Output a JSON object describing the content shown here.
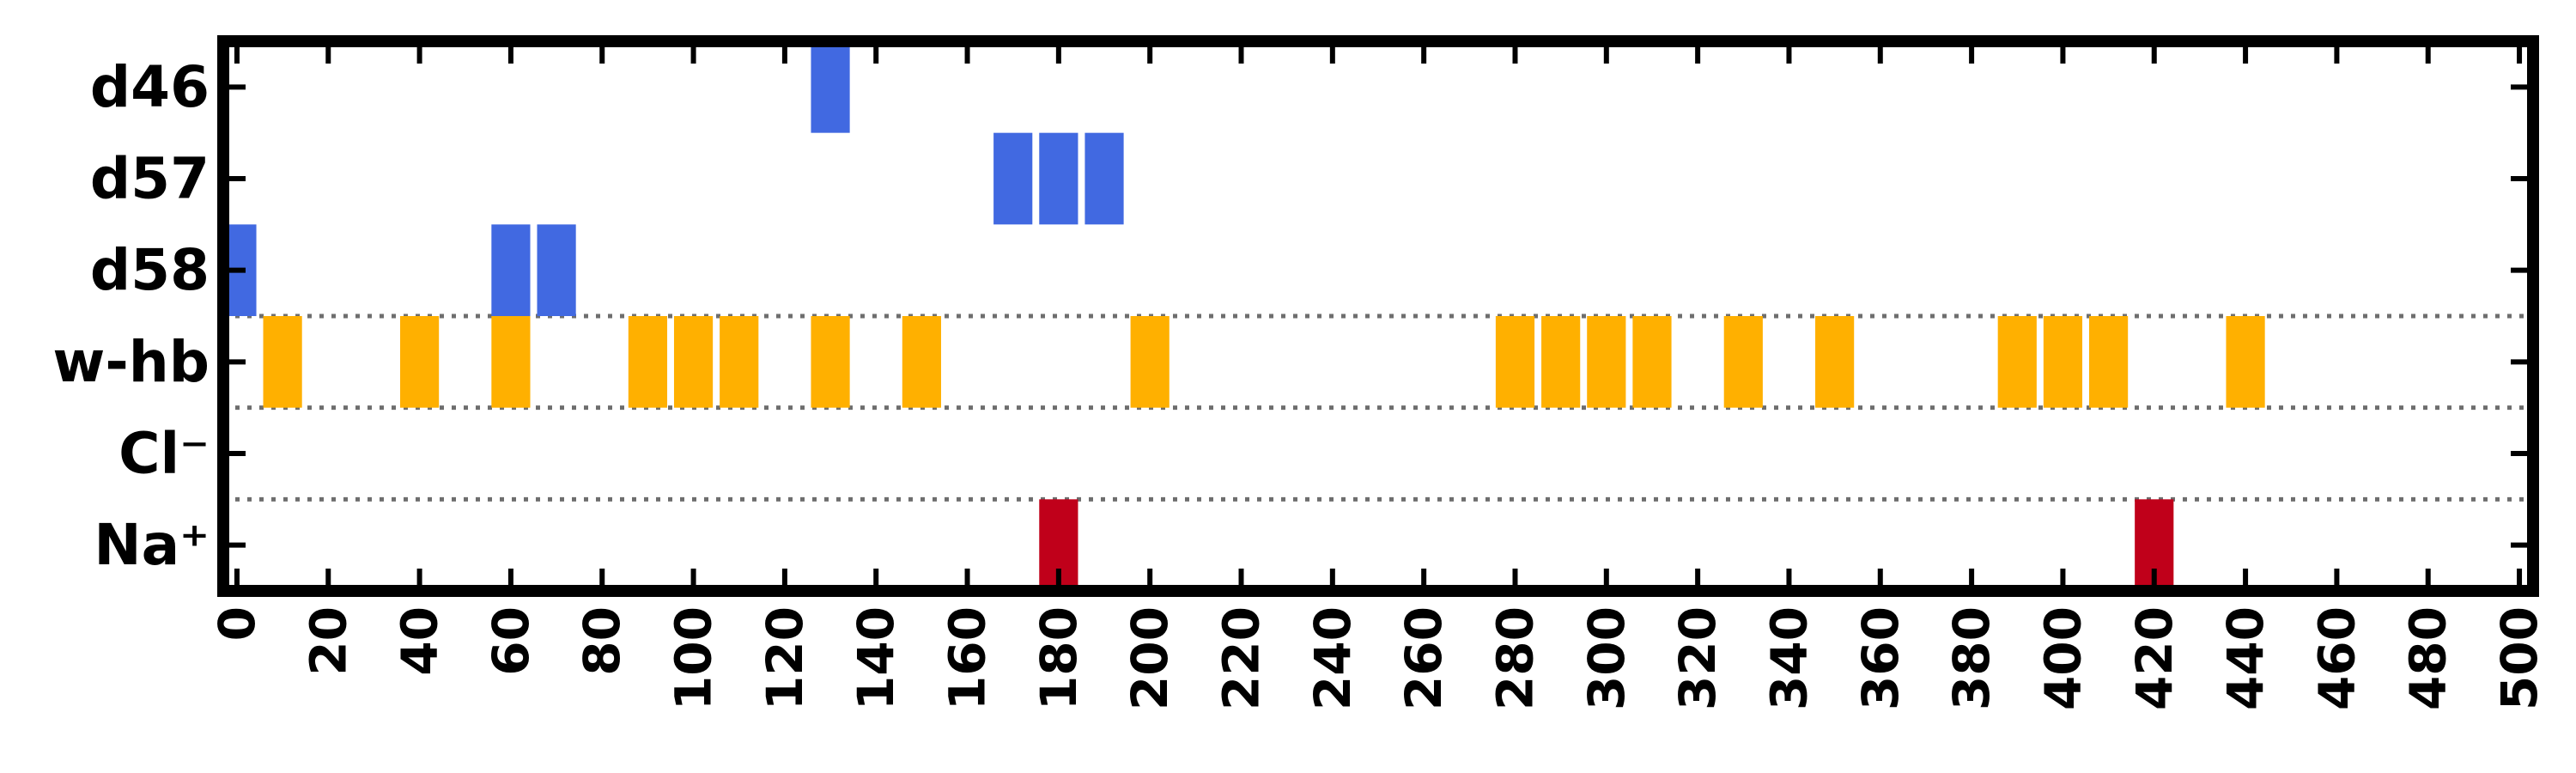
{
  "chart_data": {
    "type": "event-raster",
    "title": "",
    "xlabel": "",
    "ylabel": "",
    "xlim": [
      -3,
      503
    ],
    "x_ticks": [
      0,
      20,
      40,
      60,
      80,
      100,
      120,
      140,
      160,
      180,
      200,
      220,
      240,
      260,
      280,
      300,
      320,
      340,
      360,
      380,
      400,
      420,
      440,
      460,
      480,
      500
    ],
    "x_tick_labels": [
      "0",
      "20",
      "40",
      "60",
      "80",
      "100",
      "120",
      "140",
      "160",
      "180",
      "200",
      "220",
      "240",
      "260",
      "280",
      "300",
      "320",
      "340",
      "360",
      "380",
      "400",
      "420",
      "440",
      "460",
      "480",
      "500"
    ],
    "bin_width": 8.5,
    "grid": false,
    "group_separators_after_rows": [
      "d58",
      "w-hb",
      "Cl⁻"
    ],
    "rows": [
      {
        "label": "d46",
        "color": "#4169e1",
        "events": [
          130
        ]
      },
      {
        "label": "d57",
        "color": "#4169e1",
        "events": [
          170,
          180,
          190
        ]
      },
      {
        "label": "d58",
        "color": "#4169e1",
        "events": [
          0,
          60,
          70
        ]
      },
      {
        "label": "w-hb",
        "color": "#ffb000",
        "events": [
          10,
          40,
          60,
          90,
          100,
          110,
          130,
          150,
          200,
          280,
          290,
          300,
          310,
          330,
          350,
          390,
          400,
          410,
          440
        ]
      },
      {
        "label": "Cl⁻",
        "color": "#ffb000",
        "events": []
      },
      {
        "label": "Na⁺",
        "color": "#c0001a",
        "events": [
          180,
          420
        ]
      }
    ]
  }
}
